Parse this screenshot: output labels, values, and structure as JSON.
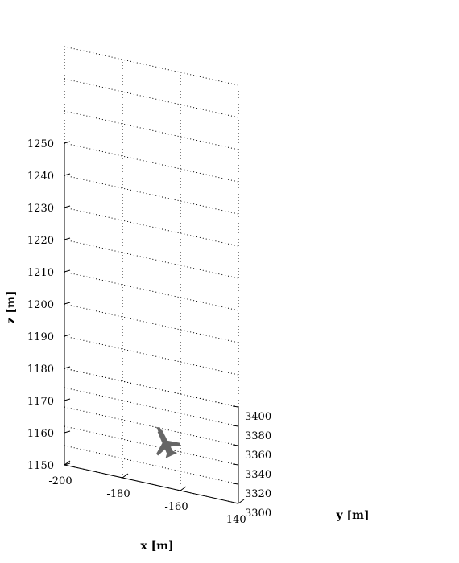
{
  "chart_data": {
    "type": "scatter",
    "projection": "3d-perspective",
    "grid": true,
    "xlabel": "x [m]",
    "ylabel": "y [m]",
    "zlabel": "z [m]",
    "xlim": [
      -200,
      -140
    ],
    "ylim": [
      3300,
      3400
    ],
    "zlim": [
      1150,
      1250
    ],
    "x_ticks": [
      "-200",
      "-180",
      "-160",
      "-140"
    ],
    "y_ticks": [
      "3300",
      "3320",
      "3340",
      "3360",
      "3380",
      "3400"
    ],
    "z_ticks": [
      "1150",
      "1160",
      "1170",
      "1180",
      "1190",
      "1200",
      "1210",
      "1220",
      "1230",
      "1240",
      "1250"
    ],
    "objects": [
      {
        "shape": "aircraft-icon",
        "x": -165,
        "y": 3345,
        "z": 1150,
        "color": "#666666"
      }
    ]
  }
}
